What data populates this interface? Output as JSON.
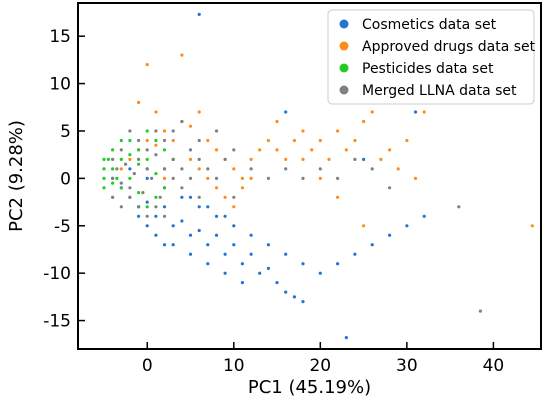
{
  "chart_data": {
    "type": "scatter",
    "title": "",
    "xlabel": "PC1 (45.19%)",
    "ylabel": "PC2 (9.28%)",
    "xlim": [
      -8,
      45.5
    ],
    "ylim": [
      -18,
      18.5
    ],
    "xticks": [
      0,
      10,
      20,
      30,
      40
    ],
    "yticks": [
      -15,
      -10,
      -5,
      0,
      5,
      10,
      15
    ],
    "grid": false,
    "legend_position": "top-right",
    "series": [
      {
        "name": "Cosmetics data set",
        "color": "#1f77d4",
        "points": [
          [
            -3,
            -1
          ],
          [
            -2,
            -2
          ],
          [
            -1,
            -3
          ],
          [
            0,
            -2.5
          ],
          [
            1,
            -4
          ],
          [
            2,
            -3
          ],
          [
            3,
            -5
          ],
          [
            4,
            -4.5
          ],
          [
            5,
            -6
          ],
          [
            6,
            -5.5
          ],
          [
            7,
            -7
          ],
          [
            8,
            -6
          ],
          [
            9,
            -8
          ],
          [
            10,
            -7
          ],
          [
            11,
            -9
          ],
          [
            12,
            -8
          ],
          [
            13,
            -10
          ],
          [
            14,
            -9.5
          ],
          [
            15,
            -11
          ],
          [
            16,
            -12
          ],
          [
            17,
            -12.5
          ],
          [
            18,
            -13
          ],
          [
            23,
            -16.8
          ],
          [
            -4,
            0
          ],
          [
            -2,
            1
          ],
          [
            0,
            0
          ],
          [
            2,
            -1
          ],
          [
            4,
            -2
          ],
          [
            6,
            -3
          ],
          [
            8,
            -4
          ],
          [
            10,
            -5
          ],
          [
            12,
            -6
          ],
          [
            14,
            -7
          ],
          [
            16,
            -8
          ],
          [
            18,
            -9
          ],
          [
            20,
            -10
          ],
          [
            22,
            -9
          ],
          [
            24,
            -8
          ],
          [
            26,
            -7
          ],
          [
            28,
            -6
          ],
          [
            30,
            -5
          ],
          [
            32,
            -4
          ],
          [
            3,
            -7
          ],
          [
            5,
            -8
          ],
          [
            7,
            -9
          ],
          [
            9,
            -10
          ],
          [
            11,
            -11
          ],
          [
            6,
            17.3
          ],
          [
            16,
            7
          ],
          [
            31,
            7
          ],
          [
            25,
            2
          ],
          [
            1,
            -6
          ],
          [
            2,
            -7
          ],
          [
            0,
            -5
          ],
          [
            -1,
            -4
          ],
          [
            5,
            -2
          ],
          [
            7,
            -3
          ],
          [
            9,
            -4
          ]
        ]
      },
      {
        "name": "Approved drugs data set",
        "color": "#ff8c1a",
        "points": [
          [
            -2,
            2
          ],
          [
            -1,
            3
          ],
          [
            0,
            4
          ],
          [
            1,
            3.5
          ],
          [
            2,
            5
          ],
          [
            3,
            4
          ],
          [
            4,
            6
          ],
          [
            5,
            5.5
          ],
          [
            6,
            7
          ],
          [
            7,
            4
          ],
          [
            8,
            3
          ],
          [
            9,
            2
          ],
          [
            10,
            1
          ],
          [
            11,
            0
          ],
          [
            12,
            2
          ],
          [
            13,
            3
          ],
          [
            14,
            4
          ],
          [
            15,
            3
          ],
          [
            16,
            2
          ],
          [
            17,
            4
          ],
          [
            18,
            5
          ],
          [
            19,
            3
          ],
          [
            20,
            4
          ],
          [
            21,
            2
          ],
          [
            22,
            5
          ],
          [
            23,
            3
          ],
          [
            24,
            4
          ],
          [
            25,
            6
          ],
          [
            26,
            7
          ],
          [
            27,
            2
          ],
          [
            28,
            3
          ],
          [
            29,
            1
          ],
          [
            30,
            4
          ],
          [
            32,
            7
          ],
          [
            -1,
            8
          ],
          [
            1,
            7
          ],
          [
            5,
            2
          ],
          [
            6,
            1
          ],
          [
            7,
            0
          ],
          [
            8,
            -1
          ],
          [
            9,
            -2
          ],
          [
            10,
            -3
          ],
          [
            11,
            -1
          ],
          [
            12,
            0
          ],
          [
            20,
            0
          ],
          [
            22,
            -2
          ],
          [
            25,
            -5
          ],
          [
            31,
            0
          ],
          [
            44.5,
            -5
          ],
          [
            4,
            13
          ],
          [
            0,
            12
          ],
          [
            -3,
            1
          ],
          [
            3,
            2
          ],
          [
            2,
            0
          ],
          [
            15,
            6
          ],
          [
            18,
            2
          ]
        ]
      },
      {
        "name": "Pesticides data set",
        "color": "#22cc22",
        "points": [
          [
            -5,
            1
          ],
          [
            -4.5,
            2
          ],
          [
            -4,
            3
          ],
          [
            -3.5,
            0
          ],
          [
            -3,
            -1
          ],
          [
            -2,
            2.5
          ],
          [
            -1,
            1.5
          ],
          [
            0,
            1
          ],
          [
            1,
            0.5
          ],
          [
            -5,
            -1
          ],
          [
            -4,
            -0.5
          ],
          [
            -3,
            4
          ],
          [
            -2,
            -2
          ],
          [
            -1,
            -1.5
          ],
          [
            0,
            -3
          ],
          [
            1,
            -2
          ],
          [
            2,
            1
          ],
          [
            3,
            2
          ],
          [
            -5,
            0
          ],
          [
            -4,
            1
          ],
          [
            -2,
            0
          ],
          [
            0,
            2
          ],
          [
            2,
            -1
          ],
          [
            -1,
            3
          ],
          [
            1,
            4
          ],
          [
            -5,
            2
          ],
          [
            -4,
            -2
          ],
          [
            -3,
            2
          ],
          [
            -2,
            4
          ],
          [
            0,
            5
          ],
          [
            -1,
            -3
          ],
          [
            2,
            3
          ]
        ]
      },
      {
        "name": "Merged LLNA data set",
        "color": "#808080",
        "points": [
          [
            -4,
            0
          ],
          [
            -3.5,
            1
          ],
          [
            -3,
            -0.5
          ],
          [
            -2.5,
            1.5
          ],
          [
            -2,
            -1
          ],
          [
            -1.5,
            0.5
          ],
          [
            -1,
            2
          ],
          [
            -0.5,
            -1.5
          ],
          [
            0,
            1
          ],
          [
            0.5,
            0
          ],
          [
            1,
            2.5
          ],
          [
            1.5,
            -2
          ],
          [
            2,
            1
          ],
          [
            -4,
            2
          ],
          [
            -3,
            3
          ],
          [
            -2,
            -2
          ],
          [
            -1,
            -3
          ],
          [
            0,
            3
          ],
          [
            1,
            -3
          ],
          [
            2,
            4
          ],
          [
            3,
            0
          ],
          [
            3,
            2
          ],
          [
            4,
            1
          ],
          [
            4,
            -1
          ],
          [
            5,
            0
          ],
          [
            5,
            3
          ],
          [
            6,
            2
          ],
          [
            6,
            -2
          ],
          [
            7,
            1
          ],
          [
            8,
            0
          ],
          [
            9,
            2
          ],
          [
            10,
            3
          ],
          [
            10,
            -2
          ],
          [
            12,
            1
          ],
          [
            14,
            0
          ],
          [
            16,
            1
          ],
          [
            18,
            0
          ],
          [
            20,
            1
          ],
          [
            22,
            0
          ],
          [
            24,
            2
          ],
          [
            26,
            1
          ],
          [
            28,
            -1
          ],
          [
            36,
            -3
          ],
          [
            38.5,
            -14
          ],
          [
            -4,
            -2
          ],
          [
            -3,
            -3
          ],
          [
            -1,
            4
          ],
          [
            0,
            -4
          ],
          [
            2,
            -4
          ],
          [
            3,
            5
          ],
          [
            1,
            5
          ],
          [
            -2,
            5
          ],
          [
            4,
            6
          ],
          [
            6,
            4
          ],
          [
            8,
            5
          ]
        ]
      }
    ]
  }
}
